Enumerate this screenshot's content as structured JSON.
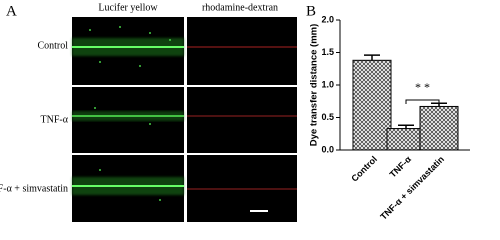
{
  "panel_a": {
    "label": "A",
    "columns": [
      "Lucifer yellow",
      "rhodamine-dextran"
    ],
    "rows": [
      "Control",
      "TNF-α",
      "TNF-α + simvastatin"
    ]
  },
  "chart_data": {
    "type": "bar",
    "panel_label": "B",
    "y_label": "Dye transfer distance (mm)",
    "categories": [
      "Control",
      "TNF-α",
      "TNF-α + simvastatin"
    ],
    "values": [
      1.38,
      0.33,
      0.67
    ],
    "errors": [
      0.08,
      0.05,
      0.05
    ],
    "color": "#000000",
    "ylim": [
      0,
      2
    ],
    "yticks": [
      {
        "value": 0,
        "label": "0.0"
      },
      {
        "value": 0.5,
        "label": "0.5"
      },
      {
        "value": 1,
        "label": "1.0"
      },
      {
        "value": 1.5,
        "label": "1.5"
      },
      {
        "value": 2,
        "label": "2.0"
      }
    ],
    "annotation": "* *"
  }
}
